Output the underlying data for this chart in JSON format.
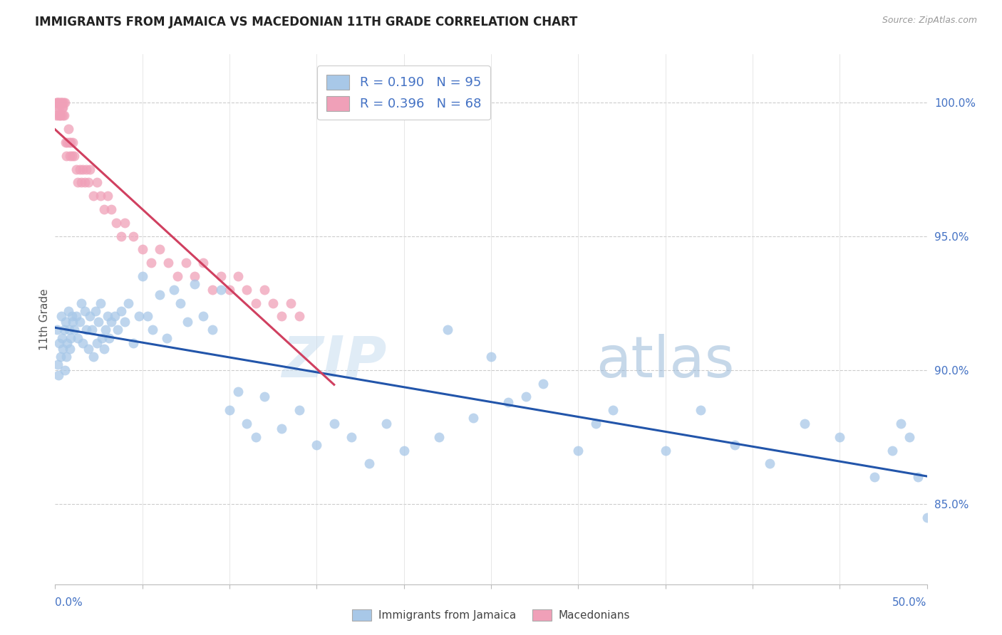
{
  "title": "IMMIGRANTS FROM JAMAICA VS MACEDONIAN 11TH GRADE CORRELATION CHART",
  "source": "Source: ZipAtlas.com",
  "ylabel": "11th Grade",
  "xmin": 0.0,
  "xmax": 50.0,
  "ymin": 82.0,
  "ymax": 101.8,
  "jamaica_color": "#a8c8e8",
  "macedonia_color": "#f0a0b8",
  "jamaica_R": 0.19,
  "jamaica_N": 95,
  "macedonia_R": 0.396,
  "macedonia_N": 68,
  "jamaica_trend_color": "#2255aa",
  "macedonia_trend_color": "#d04060",
  "watermark_zip": "ZIP",
  "watermark_atlas": "atlas",
  "jamaica_x": [
    0.1,
    0.15,
    0.2,
    0.25,
    0.3,
    0.35,
    0.4,
    0.45,
    0.5,
    0.55,
    0.6,
    0.65,
    0.7,
    0.75,
    0.8,
    0.85,
    0.9,
    0.95,
    1.0,
    1.1,
    1.2,
    1.3,
    1.4,
    1.5,
    1.6,
    1.7,
    1.8,
    1.9,
    2.0,
    2.1,
    2.2,
    2.3,
    2.4,
    2.5,
    2.6,
    2.7,
    2.8,
    2.9,
    3.0,
    3.1,
    3.2,
    3.4,
    3.6,
    3.8,
    4.0,
    4.2,
    4.5,
    4.8,
    5.0,
    5.3,
    5.6,
    6.0,
    6.4,
    6.8,
    7.2,
    7.6,
    8.0,
    8.5,
    9.0,
    9.5,
    10.0,
    10.5,
    11.0,
    11.5,
    12.0,
    13.0,
    14.0,
    15.0,
    16.0,
    17.0,
    18.0,
    19.0,
    20.0,
    22.0,
    24.0,
    26.0,
    28.0,
    30.0,
    32.0,
    35.0,
    37.0,
    39.0,
    41.0,
    43.0,
    45.0,
    47.0,
    48.0,
    48.5,
    49.0,
    49.5,
    50.0,
    25.0,
    22.5,
    27.0,
    31.0
  ],
  "jamaica_y": [
    91.5,
    90.2,
    89.8,
    91.0,
    90.5,
    92.0,
    91.2,
    90.8,
    91.5,
    90.0,
    91.8,
    90.5,
    91.0,
    92.2,
    91.5,
    90.8,
    91.2,
    92.0,
    91.8,
    91.5,
    92.0,
    91.2,
    91.8,
    92.5,
    91.0,
    92.2,
    91.5,
    90.8,
    92.0,
    91.5,
    90.5,
    92.2,
    91.0,
    91.8,
    92.5,
    91.2,
    90.8,
    91.5,
    92.0,
    91.2,
    91.8,
    92.0,
    91.5,
    92.2,
    91.8,
    92.5,
    91.0,
    92.0,
    93.5,
    92.0,
    91.5,
    92.8,
    91.2,
    93.0,
    92.5,
    91.8,
    93.2,
    92.0,
    91.5,
    93.0,
    88.5,
    89.2,
    88.0,
    87.5,
    89.0,
    87.8,
    88.5,
    87.2,
    88.0,
    87.5,
    86.5,
    88.0,
    87.0,
    87.5,
    88.2,
    88.8,
    89.5,
    87.0,
    88.5,
    87.0,
    88.5,
    87.2,
    86.5,
    88.0,
    87.5,
    86.0,
    87.0,
    88.0,
    87.5,
    86.0,
    84.5,
    90.5,
    91.5,
    89.0,
    88.0
  ],
  "macedonia_x": [
    0.05,
    0.08,
    0.1,
    0.12,
    0.15,
    0.18,
    0.2,
    0.22,
    0.25,
    0.28,
    0.3,
    0.32,
    0.35,
    0.38,
    0.4,
    0.42,
    0.45,
    0.48,
    0.5,
    0.55,
    0.6,
    0.65,
    0.7,
    0.75,
    0.8,
    0.85,
    0.9,
    0.95,
    1.0,
    1.1,
    1.2,
    1.3,
    1.4,
    1.5,
    1.6,
    1.7,
    1.8,
    1.9,
    2.0,
    2.2,
    2.4,
    2.6,
    2.8,
    3.0,
    3.2,
    3.5,
    3.8,
    4.0,
    4.5,
    5.0,
    5.5,
    6.0,
    6.5,
    7.0,
    7.5,
    8.0,
    8.5,
    9.0,
    9.5,
    10.0,
    10.5,
    11.0,
    11.5,
    12.0,
    12.5,
    13.0,
    13.5,
    14.0
  ],
  "macedonia_y": [
    100.0,
    99.5,
    100.0,
    99.8,
    100.0,
    99.5,
    100.0,
    99.8,
    100.0,
    99.5,
    100.0,
    99.5,
    100.0,
    99.8,
    100.0,
    99.5,
    99.8,
    100.0,
    99.5,
    100.0,
    98.5,
    98.0,
    98.5,
    99.0,
    98.5,
    98.0,
    98.5,
    98.0,
    98.5,
    98.0,
    97.5,
    97.0,
    97.5,
    97.0,
    97.5,
    97.0,
    97.5,
    97.0,
    97.5,
    96.5,
    97.0,
    96.5,
    96.0,
    96.5,
    96.0,
    95.5,
    95.0,
    95.5,
    95.0,
    94.5,
    94.0,
    94.5,
    94.0,
    93.5,
    94.0,
    93.5,
    94.0,
    93.0,
    93.5,
    93.0,
    93.5,
    93.0,
    92.5,
    93.0,
    92.5,
    92.0,
    92.5,
    92.0
  ]
}
